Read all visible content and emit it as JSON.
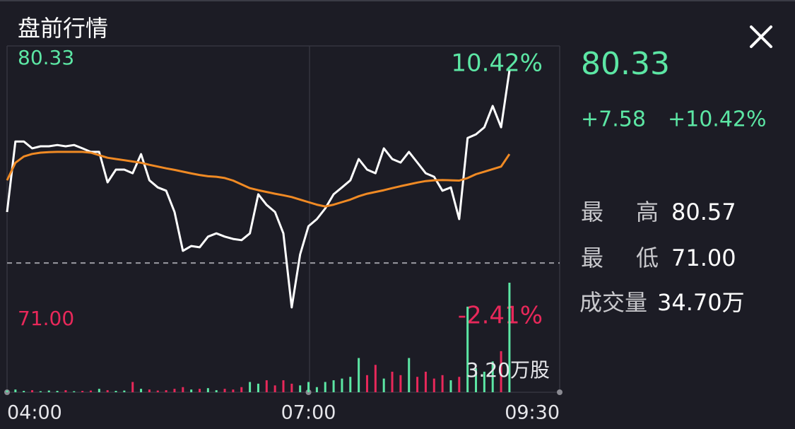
{
  "title": "盘前行情",
  "quote": {
    "price": "80.33",
    "change": "+7.58",
    "change_pct": "+10.42%"
  },
  "stats": [
    {
      "label": "最高",
      "value": "80.57"
    },
    {
      "label": "最低",
      "value": "71.00"
    },
    {
      "label": "成交量",
      "value": "34.70万"
    }
  ],
  "chart_data": {
    "type": "line",
    "x": [
      "04:00",
      "04:05",
      "04:10",
      "04:15",
      "04:20",
      "04:25",
      "04:30",
      "04:35",
      "04:40",
      "04:45",
      "04:50",
      "04:55",
      "05:00",
      "05:05",
      "05:10",
      "05:15",
      "05:20",
      "05:25",
      "05:30",
      "05:35",
      "05:40",
      "05:45",
      "05:50",
      "05:55",
      "06:00",
      "06:05",
      "06:10",
      "06:15",
      "06:20",
      "06:25",
      "06:30",
      "06:35",
      "06:40",
      "06:45",
      "06:50",
      "06:55",
      "07:00",
      "07:05",
      "07:10",
      "07:15",
      "07:20",
      "07:25",
      "07:30",
      "07:35",
      "07:40",
      "07:45",
      "07:50",
      "07:55",
      "08:00",
      "08:05",
      "08:10",
      "08:15",
      "08:20",
      "08:25",
      "08:30",
      "08:35",
      "08:40",
      "08:45",
      "08:50",
      "08:55",
      "09:00"
    ],
    "xlim": [
      "04:00",
      "09:30"
    ],
    "xticks": [
      "04:00",
      "07:00",
      "09:30"
    ],
    "ylim": [
      71,
      80.33
    ],
    "yticks": [
      80.33,
      {
        "value": 71,
        "label": "71.00"
      }
    ],
    "y2lim": [
      -2.41,
      10.42
    ],
    "y2ticks": [
      {
        "value": 10.42,
        "label": "10.42%"
      },
      {
        "value": -2.41,
        "label": "-2.41%"
      }
    ],
    "reference_line": 72.75,
    "up_color": "#5ce6a4",
    "down_color": "#e8285a",
    "series": [
      {
        "color": "#ffffff",
        "values": [
          74.76,
          77.54,
          77.54,
          77.27,
          77.35,
          77.35,
          77.4,
          77.35,
          77.4,
          77.27,
          77.13,
          77.13,
          75.93,
          76.43,
          76.43,
          76.29,
          77.04,
          76.01,
          75.73,
          75.6,
          74.76,
          73.23,
          73.42,
          73.37,
          73.79,
          73.92,
          73.79,
          73.7,
          73.65,
          73.92,
          75.46,
          75.04,
          74.76,
          73.92,
          71.0,
          73.09,
          74.2,
          74.48,
          74.9,
          75.46,
          75.73,
          76.01,
          76.85,
          76.43,
          76.29,
          77.27,
          76.85,
          76.71,
          77.13,
          76.71,
          76.29,
          76.15,
          75.6,
          75.73,
          74.48,
          77.68,
          77.82,
          78.1,
          78.94,
          78.1,
          80.33
        ]
      },
      {
        "color": "#f08a24",
        "values": [
          76.01,
          76.7,
          76.95,
          77.05,
          77.1,
          77.12,
          77.13,
          77.13,
          77.13,
          77.13,
          77.1,
          77.0,
          76.9,
          76.85,
          76.8,
          76.75,
          76.7,
          76.62,
          76.55,
          76.48,
          76.42,
          76.35,
          76.28,
          76.22,
          76.17,
          76.15,
          76.1,
          76.0,
          75.85,
          75.7,
          75.62,
          75.55,
          75.48,
          75.42,
          75.35,
          75.25,
          75.15,
          75.05,
          74.98,
          75.05,
          75.15,
          75.25,
          75.38,
          75.48,
          75.55,
          75.62,
          75.7,
          75.78,
          75.85,
          75.92,
          75.98,
          76.01,
          76.02,
          76.01,
          76.0,
          76.1,
          76.25,
          76.35,
          76.45,
          76.55,
          77.04
        ]
      }
    ],
    "volume": {
      "values": [
        0.05,
        0.08,
        0.04,
        0.06,
        0.03,
        0.05,
        0.04,
        0.06,
        0.03,
        0.04,
        0.05,
        0.1,
        0.06,
        0.04,
        0.05,
        0.3,
        0.1,
        0.08,
        0.05,
        0.06,
        0.1,
        0.15,
        0.08,
        0.1,
        0.12,
        0.06,
        0.1,
        0.08,
        0.15,
        0.3,
        0.25,
        0.35,
        0.2,
        0.35,
        0.25,
        0.2,
        0.3,
        0.15,
        0.3,
        0.35,
        0.4,
        0.45,
        1.0,
        0.5,
        0.8,
        0.4,
        0.6,
        0.5,
        1.0,
        0.45,
        0.6,
        0.4,
        0.5,
        0.35,
        0.45,
        2.5,
        0.7,
        0.6,
        0.9,
        1.2,
        3.2
      ],
      "ylim": [
        0,
        3.2
      ],
      "yticks": [
        {
          "value": 3.2,
          "label": "3.20万股"
        }
      ]
    }
  }
}
